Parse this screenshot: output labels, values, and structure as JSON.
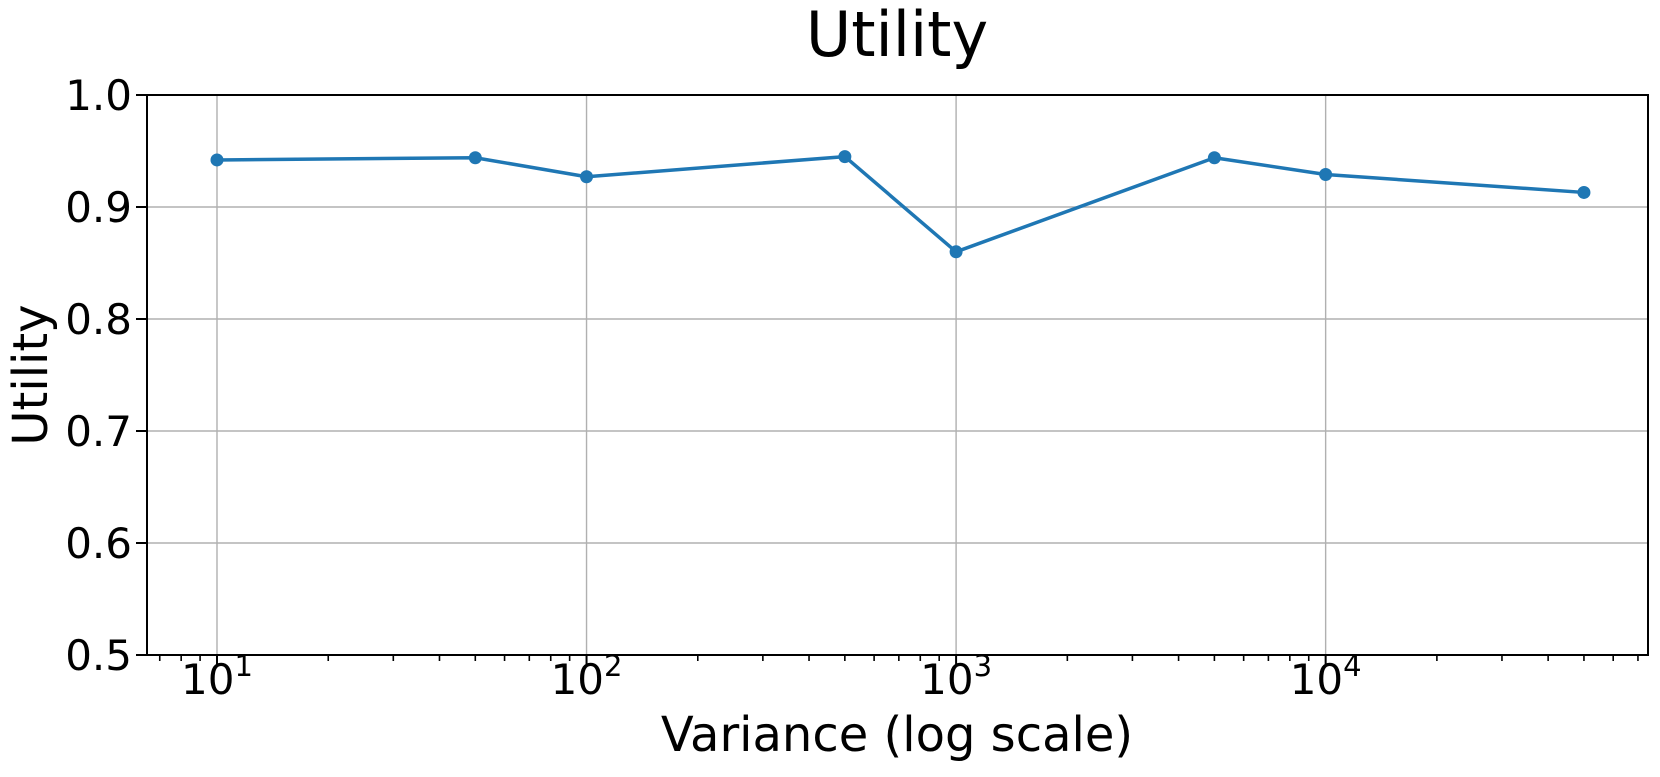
{
  "chart_data": {
    "type": "line",
    "title": "Utility",
    "xlabel": "Variance (log scale)",
    "ylabel": "Utility",
    "xscale": "log",
    "x": [
      10,
      50,
      100,
      500,
      1000,
      5000,
      10000,
      50000
    ],
    "y": [
      0.942,
      0.944,
      0.927,
      0.945,
      0.86,
      0.944,
      0.929,
      0.913
    ],
    "xlim_log10": [
      0.8106,
      4.8723
    ],
    "ylim": [
      0.5,
      1.0
    ],
    "yticks": [
      0.5,
      0.6,
      0.7,
      0.8,
      0.9,
      1.0
    ],
    "ytick_labels": [
      "0.5",
      "0.6",
      "0.7",
      "0.8",
      "0.9",
      "1.0"
    ],
    "xtick_exponents": [
      1,
      2,
      3,
      4
    ],
    "xtick_base": "10",
    "grid": true,
    "legend": "none",
    "line_color": "#1f77b4",
    "marker": "circle",
    "grid_color": "#b0b0b0",
    "axis_color": "#000000",
    "text_color": "#000000",
    "background_color": "#ffffff"
  }
}
